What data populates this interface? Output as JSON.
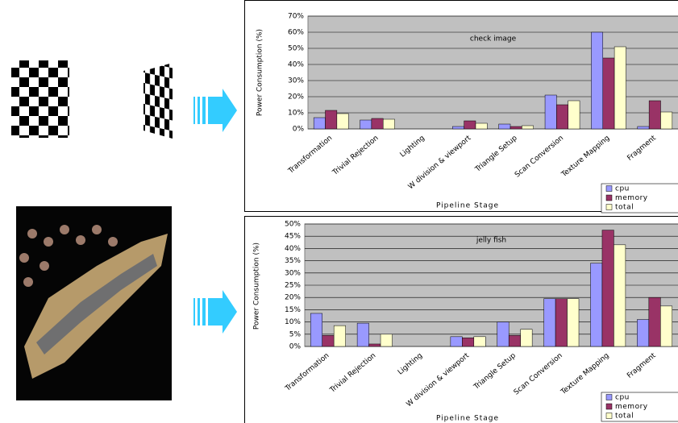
{
  "chart_data": [
    {
      "type": "bar",
      "title": "check image",
      "y_label": "Power Consumption (%)",
      "x_label": "Pipeline Stage",
      "categories": [
        "Transformation",
        "Trivial Rejection",
        "Lighting",
        "W division & viewport",
        "Triangle Setup",
        "Scan Conversion",
        "Texture Mapping",
        "Fragment"
      ],
      "series": [
        {
          "name": "cpu",
          "color": "#9999ff",
          "values": [
            7,
            5.5,
            0,
            1.5,
            3,
            21,
            60,
            1.5
          ]
        },
        {
          "name": "memory",
          "color": "#993366",
          "values": [
            11.5,
            6.5,
            0,
            5,
            1.5,
            15,
            44,
            17.5
          ]
        },
        {
          "name": "total",
          "color": "#ffffcc",
          "values": [
            9.5,
            6,
            0,
            3.5,
            2,
            17.5,
            51,
            10.5
          ]
        }
      ],
      "ylim": [
        0,
        70
      ],
      "yticks": [
        {
          "value": 0,
          "label": "0%"
        },
        {
          "value": 10,
          "label": "10%"
        },
        {
          "value": 20,
          "label": "20%"
        },
        {
          "value": 30,
          "label": "30%"
        },
        {
          "value": 40,
          "label": "40%"
        },
        {
          "value": 50,
          "label": "50%"
        },
        {
          "value": 60,
          "label": "60%"
        },
        {
          "value": 70,
          "label": "70%"
        }
      ],
      "grid": true,
      "legend": "bottom-right"
    },
    {
      "type": "bar",
      "title": "jelly fish",
      "y_label": "Power Consumption (%)",
      "x_label": "Pipeline Stage",
      "categories": [
        "Transformation",
        "Trivial Rejection",
        "Lighting",
        "W division & viewport",
        "Triangle Setup",
        "Scan Conversion",
        "Texture Mapping",
        "Fragment"
      ],
      "series": [
        {
          "name": "cpu",
          "color": "#9999ff",
          "values": [
            13.5,
            9.5,
            0,
            4,
            10,
            19.5,
            34,
            11
          ]
        },
        {
          "name": "memory",
          "color": "#993366",
          "values": [
            4.5,
            1,
            0,
            3.5,
            4.5,
            19.5,
            47.5,
            20
          ]
        },
        {
          "name": "total",
          "color": "#ffffcc",
          "values": [
            8.5,
            5,
            0,
            4,
            7,
            19.5,
            41.5,
            16.5
          ]
        }
      ],
      "ylim": [
        0,
        50
      ],
      "yticks": [
        {
          "value": 0,
          "label": "0%"
        },
        {
          "value": 5,
          "label": "5%"
        },
        {
          "value": 10,
          "label": "10%"
        },
        {
          "value": 15,
          "label": "15%"
        },
        {
          "value": 20,
          "label": "20%"
        },
        {
          "value": 25,
          "label": "25%"
        },
        {
          "value": 30,
          "label": "30%"
        },
        {
          "value": 35,
          "label": "35%"
        },
        {
          "value": 40,
          "label": "40%"
        },
        {
          "value": 45,
          "label": "45%"
        },
        {
          "value": 50,
          "label": "50%"
        }
      ],
      "grid": true,
      "legend": "bottom-right"
    }
  ]
}
